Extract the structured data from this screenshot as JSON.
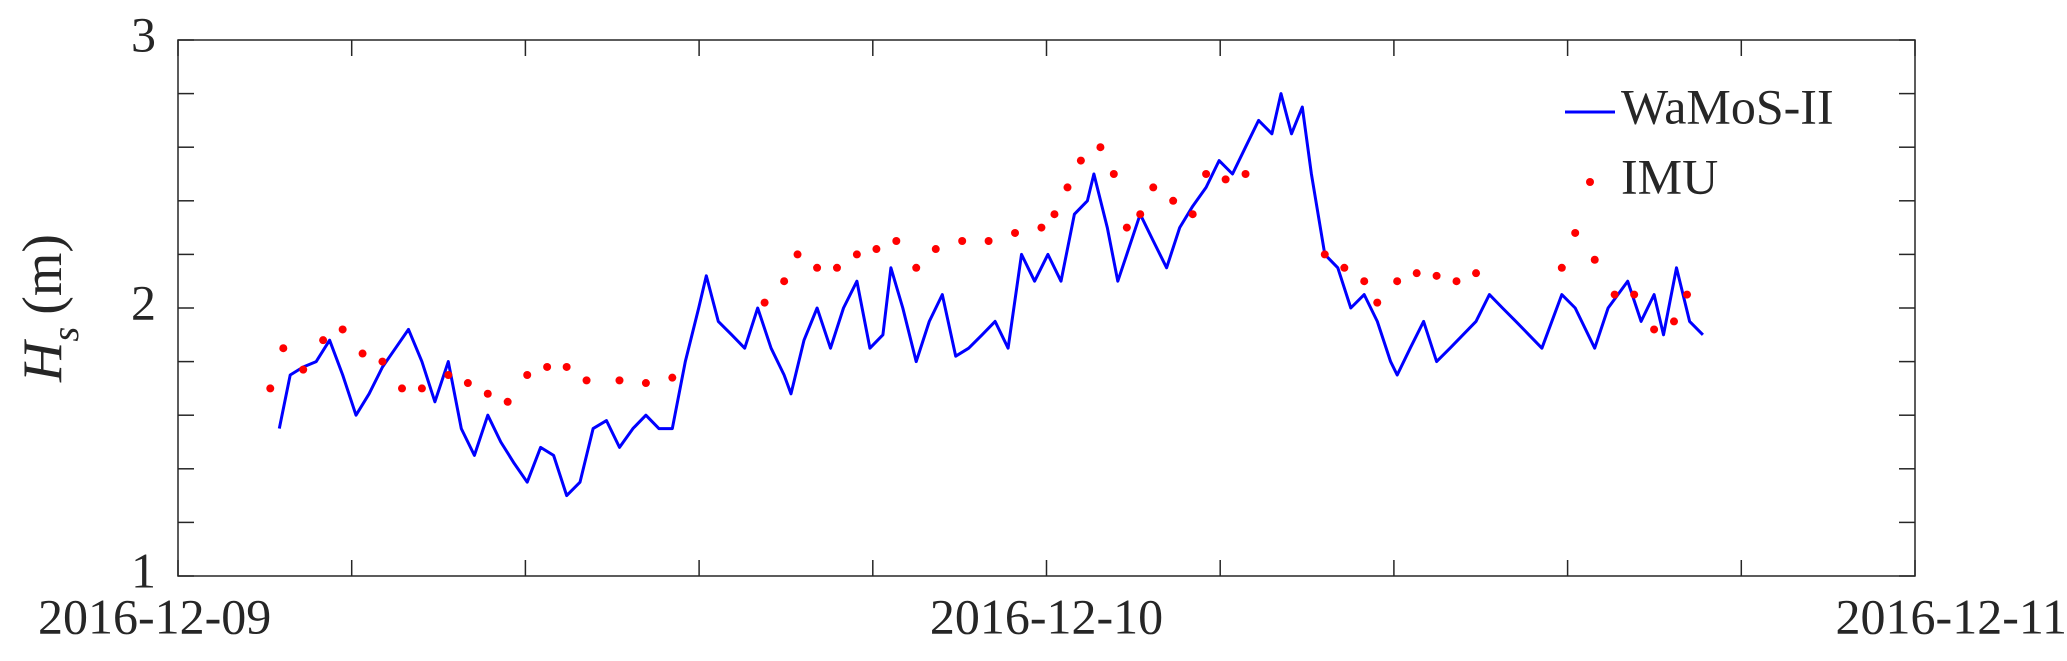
{
  "chart_data": {
    "type": "line-scatter",
    "ylabel": {
      "symbol": "H",
      "subscript": "s",
      "unit": "(m)"
    },
    "xlim": [
      0,
      48
    ],
    "xticks": [
      {
        "value": 0,
        "label": "2016-12-09"
      },
      {
        "value": 24,
        "label": "2016-12-10"
      },
      {
        "value": 48,
        "label": "2016-12-11"
      }
    ],
    "xminor_ticks": [
      4.8,
      9.6,
      14.4,
      19.2,
      28.8,
      33.6,
      38.4,
      43.2
    ],
    "ylim": [
      1,
      3
    ],
    "yticks": [
      1,
      2,
      3
    ],
    "yminor_ticks": [
      1.2,
      1.4,
      1.6,
      1.8,
      2.2,
      2.4,
      2.6,
      2.8
    ],
    "grid": false,
    "legend": "top-right",
    "series": [
      {
        "name": "WaMoS-II",
        "kind": "line",
        "color": "#0000ff",
        "x": [
          2.8,
          3.1,
          3.46,
          3.82,
          4.19,
          4.55,
          4.92,
          5.28,
          5.65,
          6.01,
          6.37,
          6.74,
          7.1,
          7.47,
          7.83,
          8.19,
          8.56,
          8.92,
          9.29,
          9.65,
          10.02,
          10.38,
          10.74,
          11.11,
          11.47,
          11.84,
          12.2,
          12.57,
          12.93,
          13.29,
          13.66,
          14.02,
          14.39,
          14.6,
          14.93,
          15.3,
          15.66,
          16.02,
          16.39,
          16.75,
          16.94,
          17.3,
          17.66,
          18.03,
          18.39,
          18.76,
          19.12,
          19.48,
          19.7,
          20.03,
          20.4,
          20.76,
          21.12,
          21.49,
          21.85,
          22.22,
          22.58,
          22.94,
          23.31,
          23.67,
          24.04,
          24.4,
          24.77,
          25.13,
          25.31,
          25.68,
          25.97,
          26.22,
          26.59,
          26.95,
          27.32,
          27.68,
          28.04,
          28.41,
          28.77,
          29.14,
          29.5,
          29.86,
          30.23,
          30.48,
          30.77,
          31.07,
          31.32,
          31.69,
          32.05,
          32.41,
          32.78,
          33.14,
          33.51,
          33.69,
          34.05,
          34.42,
          34.78,
          35.15,
          35.51,
          35.87,
          36.24,
          36.6,
          36.97,
          37.33,
          37.69,
          38.24,
          38.61,
          39.15,
          39.52,
          40.06,
          40.43,
          40.79,
          41.05,
          41.41,
          41.77,
          42.14
        ],
        "values": [
          1.55,
          1.75,
          1.78,
          1.8,
          1.88,
          1.75,
          1.6,
          1.68,
          1.78,
          1.85,
          1.92,
          1.8,
          1.65,
          1.8,
          1.55,
          1.45,
          1.6,
          1.5,
          1.42,
          1.35,
          1.48,
          1.45,
          1.3,
          1.35,
          1.55,
          1.58,
          1.48,
          1.55,
          1.6,
          1.55,
          1.55,
          1.8,
          2.0,
          2.12,
          1.95,
          1.9,
          1.85,
          2.0,
          1.85,
          1.75,
          1.68,
          1.88,
          2.0,
          1.85,
          2.0,
          2.1,
          1.85,
          1.9,
          2.15,
          2.0,
          1.8,
          1.95,
          2.05,
          1.82,
          1.85,
          1.9,
          1.95,
          1.85,
          2.2,
          2.1,
          2.2,
          2.1,
          2.35,
          2.4,
          2.5,
          2.3,
          2.1,
          2.2,
          2.35,
          2.25,
          2.15,
          2.3,
          2.38,
          2.45,
          2.55,
          2.5,
          2.6,
          2.7,
          2.65,
          2.8,
          2.65,
          2.75,
          2.5,
          2.2,
          2.15,
          2.0,
          2.05,
          1.95,
          1.8,
          1.75,
          1.85,
          1.95,
          1.8,
          1.85,
          1.9,
          1.95,
          2.05,
          2.0,
          1.95,
          1.9,
          1.85,
          2.05,
          2.0,
          1.85,
          2.0,
          2.1,
          1.95,
          2.05,
          1.9,
          2.15,
          1.95,
          1.9
        ]
      },
      {
        "name": "IMU",
        "kind": "scatter",
        "color": "#ff0000",
        "x": [
          2.55,
          2.91,
          3.46,
          4.01,
          4.55,
          5.1,
          5.65,
          6.19,
          6.74,
          7.47,
          8.01,
          8.56,
          9.11,
          9.65,
          10.2,
          10.74,
          11.29,
          12.2,
          12.93,
          13.66,
          16.21,
          16.75,
          17.12,
          17.66,
          18.21,
          18.76,
          19.3,
          19.85,
          20.4,
          20.94,
          21.67,
          22.4,
          23.13,
          23.86,
          24.22,
          24.58,
          24.95,
          25.49,
          25.86,
          26.22,
          26.59,
          26.95,
          27.5,
          28.04,
          28.41,
          28.95,
          29.5,
          31.69,
          32.23,
          32.78,
          33.14,
          33.69,
          34.23,
          34.78,
          35.33,
          35.87,
          38.24,
          38.61,
          39.15,
          39.7,
          40.24,
          40.79,
          41.34,
          41.7
        ],
        "values": [
          1.7,
          1.85,
          1.77,
          1.88,
          1.92,
          1.83,
          1.8,
          1.7,
          1.7,
          1.75,
          1.72,
          1.68,
          1.65,
          1.75,
          1.78,
          1.78,
          1.73,
          1.73,
          1.72,
          1.74,
          2.02,
          2.1,
          2.2,
          2.15,
          2.15,
          2.2,
          2.22,
          2.25,
          2.15,
          2.22,
          2.25,
          2.25,
          2.28,
          2.3,
          2.35,
          2.45,
          2.55,
          2.6,
          2.5,
          2.3,
          2.35,
          2.45,
          2.4,
          2.35,
          2.5,
          2.48,
          2.5,
          2.2,
          2.15,
          2.1,
          2.02,
          2.1,
          2.13,
          2.12,
          2.1,
          2.13,
          2.15,
          2.28,
          2.18,
          2.05,
          2.05,
          1.92,
          1.95,
          2.05
        ]
      }
    ]
  }
}
